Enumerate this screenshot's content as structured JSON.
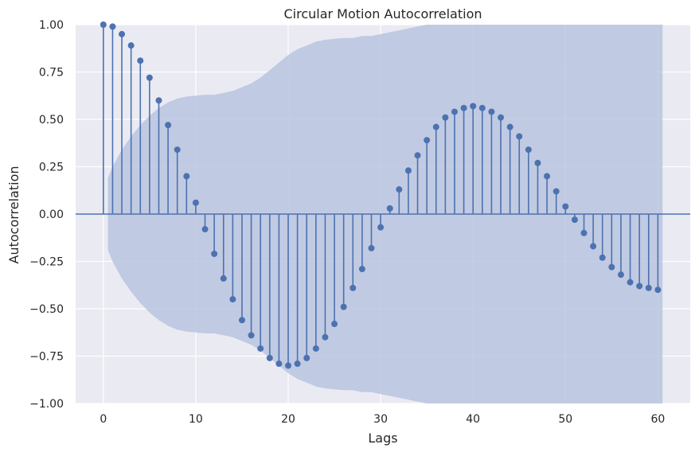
{
  "chart_data": {
    "type": "stem",
    "title": "Circular Motion Autocorrelation",
    "xlabel": "Lags",
    "ylabel": "Autocorrelation",
    "xlim": [
      -3,
      63.5
    ],
    "ylim": [
      -1.0,
      1.0
    ],
    "x_ticks": [
      0,
      10,
      20,
      30,
      40,
      50,
      60
    ],
    "y_ticks": [
      1.0,
      0.75,
      0.5,
      0.25,
      0.0,
      -0.25,
      -0.5,
      -0.75,
      -1.0
    ],
    "x_tick_labels": [
      "0",
      "10",
      "20",
      "30",
      "40",
      "50",
      "60"
    ],
    "y_tick_labels": [
      "1.00",
      "0.75",
      "0.50",
      "0.25",
      "0.00",
      "−0.25",
      "−0.50",
      "−0.75",
      "−1.00"
    ],
    "grid": true,
    "colors": {
      "background": "#eaeaf2",
      "grid": "#ffffff",
      "stem": "#4c72b0",
      "marker": "#4c72b0",
      "confidence_band": "#b3c0de"
    },
    "lags": [
      0,
      1,
      2,
      3,
      4,
      5,
      6,
      7,
      8,
      9,
      10,
      11,
      12,
      13,
      14,
      15,
      16,
      17,
      18,
      19,
      20,
      21,
      22,
      23,
      24,
      25,
      26,
      27,
      28,
      29,
      30,
      31,
      32,
      33,
      34,
      35,
      36,
      37,
      38,
      39,
      40,
      41,
      42,
      43,
      44,
      45,
      46,
      47,
      48,
      49,
      50,
      51,
      52,
      53,
      54,
      55,
      56,
      57,
      58,
      59,
      60
    ],
    "autocorrelation": [
      1.0,
      0.99,
      0.95,
      0.89,
      0.81,
      0.72,
      0.6,
      0.47,
      0.34,
      0.2,
      0.06,
      -0.08,
      -0.21,
      -0.34,
      -0.45,
      -0.56,
      -0.64,
      -0.71,
      -0.76,
      -0.79,
      -0.8,
      -0.79,
      -0.76,
      -0.71,
      -0.65,
      -0.58,
      -0.49,
      -0.39,
      -0.29,
      -0.18,
      -0.07,
      0.03,
      0.13,
      0.23,
      0.31,
      0.39,
      0.46,
      0.51,
      0.54,
      0.56,
      0.57,
      0.56,
      0.54,
      0.51,
      0.46,
      0.41,
      0.34,
      0.27,
      0.2,
      0.12,
      0.04,
      -0.03,
      -0.1,
      -0.17,
      -0.23,
      -0.28,
      -0.32,
      -0.36,
      -0.38,
      -0.39,
      -0.4
    ],
    "confidence_interval": {
      "lags": [
        0.5,
        1,
        2,
        3,
        4,
        5,
        6,
        7,
        8,
        9,
        10,
        11,
        12,
        13,
        14,
        15,
        16,
        17,
        18,
        19,
        20,
        21,
        22,
        23,
        24,
        25,
        26,
        27,
        28,
        29,
        30,
        31,
        32,
        33,
        34,
        35,
        36,
        37,
        38,
        39,
        40,
        41,
        42,
        43,
        44,
        45,
        46,
        47,
        48,
        49,
        50,
        51,
        52,
        53,
        54,
        55,
        56,
        57,
        58,
        59,
        60,
        60.5
      ],
      "upper": [
        0.19,
        0.25,
        0.34,
        0.41,
        0.47,
        0.52,
        0.56,
        0.59,
        0.61,
        0.62,
        0.625,
        0.63,
        0.63,
        0.64,
        0.65,
        0.67,
        0.69,
        0.72,
        0.76,
        0.8,
        0.84,
        0.87,
        0.89,
        0.91,
        0.92,
        0.925,
        0.93,
        0.93,
        0.94,
        0.94,
        0.95,
        0.96,
        0.97,
        0.98,
        0.99,
        1.0,
        1.0,
        1.0,
        1.0,
        1.0,
        1.0,
        1.0,
        1.0,
        1.0,
        1.0,
        1.0,
        1.0,
        1.0,
        1.0,
        1.0,
        1.0,
        1.0,
        1.0,
        1.0,
        1.0,
        1.0,
        1.0,
        1.0,
        1.0,
        1.0,
        1.0,
        1.0
      ]
    }
  }
}
